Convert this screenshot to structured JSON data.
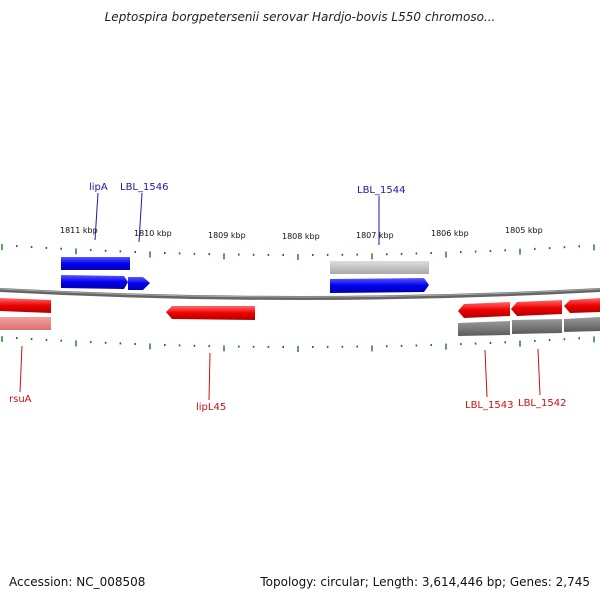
{
  "title": "Leptospira borgpetersenii serovar Hardjo-bovis L550 chromoso...",
  "footer": {
    "accession": "Accession: NC_008508",
    "summary": "Topology: circular; Length: 3,614,446 bp; Genes: 2,745"
  },
  "kbp_labels": [
    "1811 kbp",
    "1810 kbp",
    "1809 kbp",
    "1808 kbp",
    "1807 kbp",
    "1806 kbp",
    "1805 kbp"
  ],
  "gene_labels": [
    {
      "name": "lipA",
      "color": "#1a1aa6"
    },
    {
      "name": "LBL_1546",
      "color": "#1a1aa6"
    },
    {
      "name": "LBL_1544",
      "color": "#1a1aa6"
    },
    {
      "name": "rsuA",
      "color": "#cc1111"
    },
    {
      "name": "lipL45",
      "color": "#cc1111"
    },
    {
      "name": "LBL_1543",
      "color": "#cc1111"
    },
    {
      "name": "LBL_1542",
      "color": "#cc1111"
    }
  ],
  "colors": {
    "forward_strand": "#0000ee",
    "reverse_strand": "#ee0000",
    "backbone": "#888888",
    "ticks": "#1a7a1a"
  }
}
